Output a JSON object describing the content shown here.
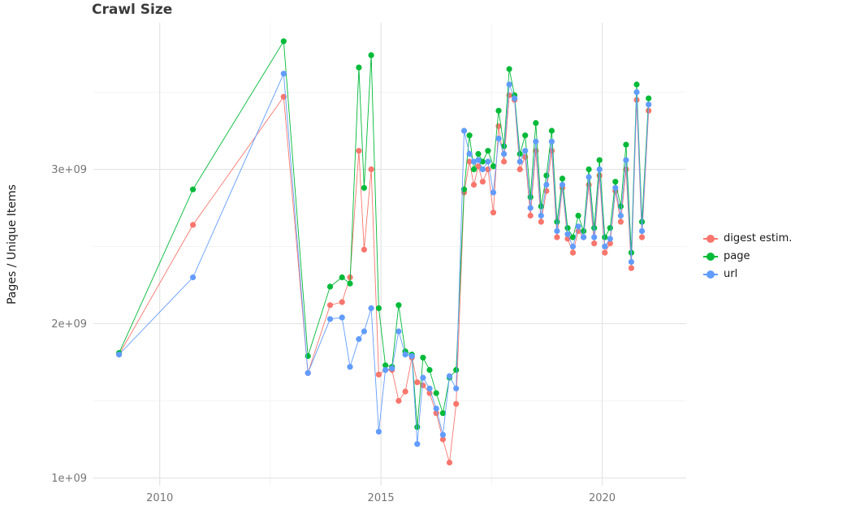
{
  "chart_data": {
    "type": "line",
    "title": "Crawl Size",
    "xlabel": "",
    "ylabel": "Pages / Unique Items",
    "legend_position": "right",
    "grid": "major+minor",
    "x_tick_labels": [
      "2010",
      "2015",
      "2020"
    ],
    "x_tick_values": [
      2010,
      2015,
      2020
    ],
    "x_minor_tick_values": [
      2012.5,
      2017.5
    ],
    "y_tick_labels": [
      "1e+09",
      "2e+09",
      "3e+09"
    ],
    "y_tick_values_billions": [
      1,
      2,
      3
    ],
    "y_minor_tick_values_billions": [
      1.5,
      2.5,
      3.5
    ],
    "xlim": [
      2008.5,
      2021.9
    ],
    "ylim_billions": [
      0.95,
      3.95
    ],
    "y_unit": "1e+09",
    "x": [
      2009.08,
      2010.75,
      2012.8,
      2013.35,
      2013.85,
      2014.12,
      2014.3,
      2014.5,
      2014.62,
      2014.78,
      2014.95,
      2015.1,
      2015.25,
      2015.4,
      2015.55,
      2015.7,
      2015.82,
      2015.95,
      2016.1,
      2016.25,
      2016.4,
      2016.55,
      2016.7,
      2016.88,
      2017.0,
      2017.1,
      2017.2,
      2017.3,
      2017.42,
      2017.54,
      2017.66,
      2017.78,
      2017.9,
      2018.02,
      2018.14,
      2018.26,
      2018.38,
      2018.5,
      2018.62,
      2018.74,
      2018.86,
      2018.98,
      2019.1,
      2019.22,
      2019.34,
      2019.46,
      2019.58,
      2019.7,
      2019.82,
      2019.94,
      2020.06,
      2020.18,
      2020.3,
      2020.42,
      2020.54,
      2020.66,
      2020.78,
      2020.9,
      2021.05
    ],
    "series": [
      {
        "name": "digest estim.",
        "color": "#F8766D",
        "values": [
          1.8,
          2.64,
          3.47,
          1.68,
          2.12,
          2.14,
          2.3,
          3.12,
          2.48,
          3.0,
          1.67,
          1.7,
          1.7,
          1.5,
          1.56,
          1.78,
          1.62,
          1.6,
          1.55,
          1.42,
          1.25,
          1.1,
          1.48,
          2.85,
          3.05,
          2.9,
          3.02,
          2.92,
          3.0,
          2.72,
          3.28,
          3.05,
          3.48,
          3.45,
          3.0,
          3.08,
          2.7,
          3.12,
          2.66,
          2.86,
          3.12,
          2.56,
          2.88,
          2.55,
          2.46,
          2.6,
          2.56,
          2.9,
          2.52,
          2.96,
          2.46,
          2.52,
          2.86,
          2.66,
          3.0,
          2.36,
          3.45,
          2.56,
          3.38
        ]
      },
      {
        "name": "page",
        "color": "#00BA38",
        "values": [
          1.81,
          2.87,
          3.83,
          1.79,
          2.24,
          2.3,
          2.26,
          3.66,
          2.88,
          3.74,
          2.1,
          1.73,
          1.72,
          2.12,
          1.82,
          1.8,
          1.33,
          1.78,
          1.7,
          1.55,
          1.42,
          1.65,
          1.7,
          2.87,
          3.22,
          3.0,
          3.1,
          3.05,
          3.12,
          3.02,
          3.38,
          3.15,
          3.65,
          3.48,
          3.1,
          3.22,
          2.82,
          3.3,
          2.76,
          2.96,
          3.25,
          2.66,
          2.94,
          2.62,
          2.56,
          2.7,
          2.6,
          3.0,
          2.62,
          3.06,
          2.56,
          2.62,
          2.92,
          2.76,
          3.16,
          2.46,
          3.55,
          2.66,
          3.46
        ]
      },
      {
        "name": "url",
        "color": "#619CFF",
        "values": [
          1.8,
          2.3,
          3.62,
          1.68,
          2.03,
          2.04,
          1.72,
          1.9,
          1.95,
          2.1,
          1.3,
          1.7,
          1.71,
          1.95,
          1.8,
          1.79,
          1.22,
          1.65,
          1.58,
          1.45,
          1.28,
          1.66,
          1.58,
          3.25,
          3.1,
          3.05,
          3.06,
          3.0,
          3.05,
          2.85,
          3.2,
          3.1,
          3.55,
          3.46,
          3.05,
          3.12,
          2.75,
          3.18,
          2.7,
          2.9,
          3.18,
          2.6,
          2.9,
          2.58,
          2.5,
          2.63,
          2.56,
          2.95,
          2.56,
          3.0,
          2.5,
          2.55,
          2.88,
          2.7,
          3.06,
          2.4,
          3.5,
          2.6,
          3.42
        ]
      }
    ]
  }
}
